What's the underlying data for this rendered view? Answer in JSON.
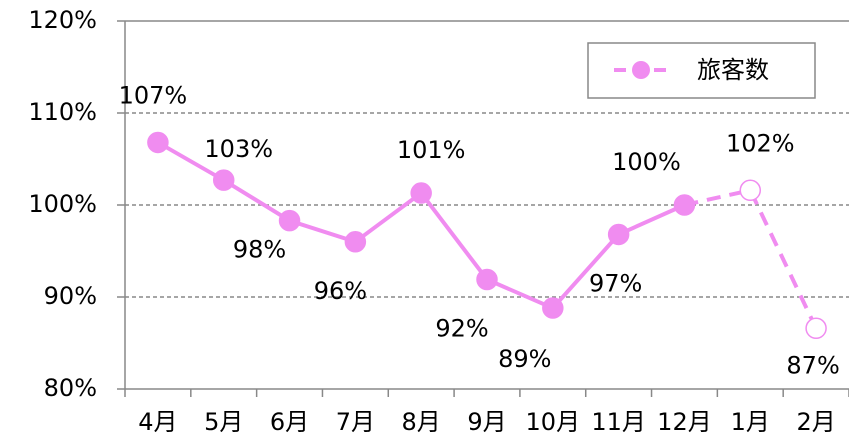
{
  "chart_data": {
    "type": "line",
    "categories": [
      "4月",
      "5月",
      "6月",
      "7月",
      "8月",
      "9月",
      "10月",
      "11月",
      "12月",
      "1月",
      "2月"
    ],
    "series": [
      {
        "name": "旅客数",
        "color": "#f08cf0",
        "values": [
          106.8,
          102.7,
          98.3,
          96.0,
          101.3,
          91.9,
          88.8,
          96.8,
          100.0,
          101.6,
          86.6
        ],
        "value_labels": [
          "107%",
          "103%",
          "98%",
          "96%",
          "101%",
          "92%",
          "89%",
          "97%",
          "100%",
          "102%",
          "87%"
        ],
        "projected_from": 9
      }
    ],
    "ylim": [
      80,
      120
    ],
    "yticks": [
      {
        "value": 80,
        "label": "80%"
      },
      {
        "value": 90,
        "label": "90%"
      },
      {
        "value": 100,
        "label": "100%"
      },
      {
        "value": 110,
        "label": "110%"
      },
      {
        "value": 120,
        "label": "120%"
      }
    ],
    "grid": true,
    "legend": "upper right"
  }
}
